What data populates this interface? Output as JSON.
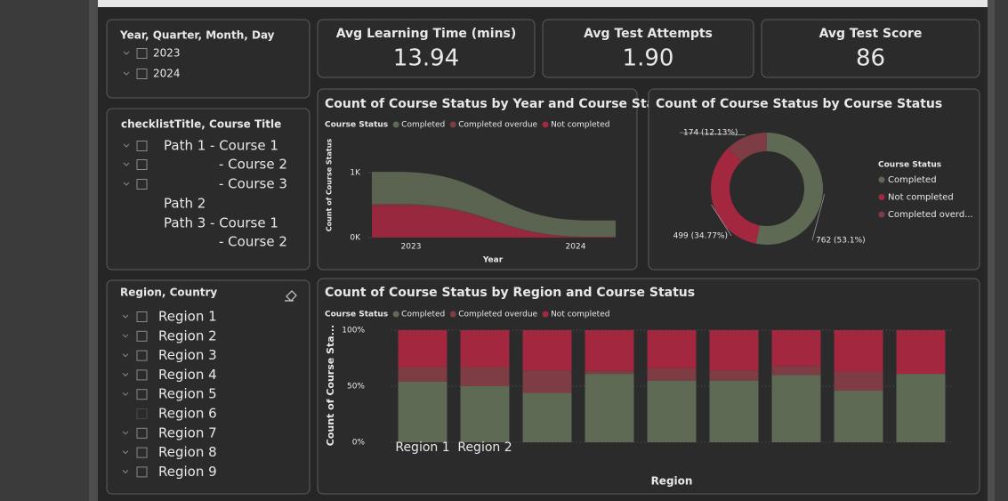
{
  "slicers": [
    {
      "title": "Year, Quarter, Month, Day",
      "items": [
        "2023",
        "2024"
      ]
    },
    {
      "title": "checklistTitle, Course Title",
      "items": [
        "Path 1 - Course 1",
        "- Course 2",
        "- Course 3",
        "Path 2",
        "Path 3 - Course 1",
        "- Course 2"
      ]
    },
    {
      "title": "Region, Country",
      "items": [
        "Region 1",
        "Region 2",
        "Region 3",
        "Region 4",
        "Region 5",
        "Region 6",
        "Region 7",
        "Region 8",
        "Region 9"
      ]
    }
  ],
  "cards": [
    {
      "label": "Avg Learning Time (mins)",
      "value": "13.94"
    },
    {
      "label": "Avg Test Attempts",
      "value": "1.90"
    },
    {
      "label": "Avg Test Score",
      "value": "86"
    }
  ],
  "chart_data": [
    {
      "type": "area",
      "title": "Count of Course Status by Year and Course Status",
      "legend_title": "Course Status",
      "x_label": "Year",
      "y_label": "Count of Course Status",
      "categories": [
        "2023",
        "2024"
      ],
      "series": [
        {
          "name": "Completed",
          "color": "#5f6a55",
          "values": [
            490,
            250
          ]
        },
        {
          "name": "Completed overdue",
          "color": "#7e3c44",
          "values": [
            30,
            5
          ]
        },
        {
          "name": "Not completed",
          "color": "#a3283f",
          "values": [
            490,
            9
          ]
        }
      ],
      "ylim": [
        0,
        1600
      ],
      "yticks": [
        {
          "value": 0,
          "label": "0K"
        },
        {
          "value": 1000,
          "label": "1K"
        }
      ]
    },
    {
      "type": "donut",
      "title": "Count of Course Status by Course Status",
      "legend_title": "Course Status",
      "labels": [
        "Completed",
        "Not completed",
        "Completed overd..."
      ],
      "values": [
        762,
        499,
        174
      ],
      "value_labels": [
        "762 (53.1%)",
        "499 (34.77%)",
        "174 (12.13%)"
      ],
      "colors": [
        "#5f6a55",
        "#a3283f",
        "#7e3c44"
      ]
    },
    {
      "type": "stacked_bar_100",
      "title": "Count of Course Status by Region and Course Status",
      "legend_title": "Course Status",
      "x_label": "Region",
      "y_label": "Count of Course Sta...",
      "categories": [
        "Region 1",
        "Region 2",
        null,
        null,
        null,
        null,
        null,
        null,
        null
      ],
      "series": [
        {
          "name": "Completed",
          "color": "#5f6a55",
          "values": [
            54,
            50,
            44,
            61,
            55,
            55,
            60,
            46,
            61
          ]
        },
        {
          "name": "Completed overdue",
          "color": "#7e3c44",
          "values": [
            13,
            17,
            20,
            3,
            11,
            9,
            8,
            17,
            0
          ]
        },
        {
          "name": "Not completed",
          "color": "#a3283f",
          "values": [
            33,
            33,
            36,
            36,
            34,
            36,
            32,
            37,
            39
          ]
        }
      ],
      "ylim": [
        0,
        100
      ],
      "yticks": [
        {
          "value": 0,
          "label": "0%"
        },
        {
          "value": 50,
          "label": "50%"
        },
        {
          "value": 100,
          "label": "100%"
        }
      ]
    }
  ]
}
